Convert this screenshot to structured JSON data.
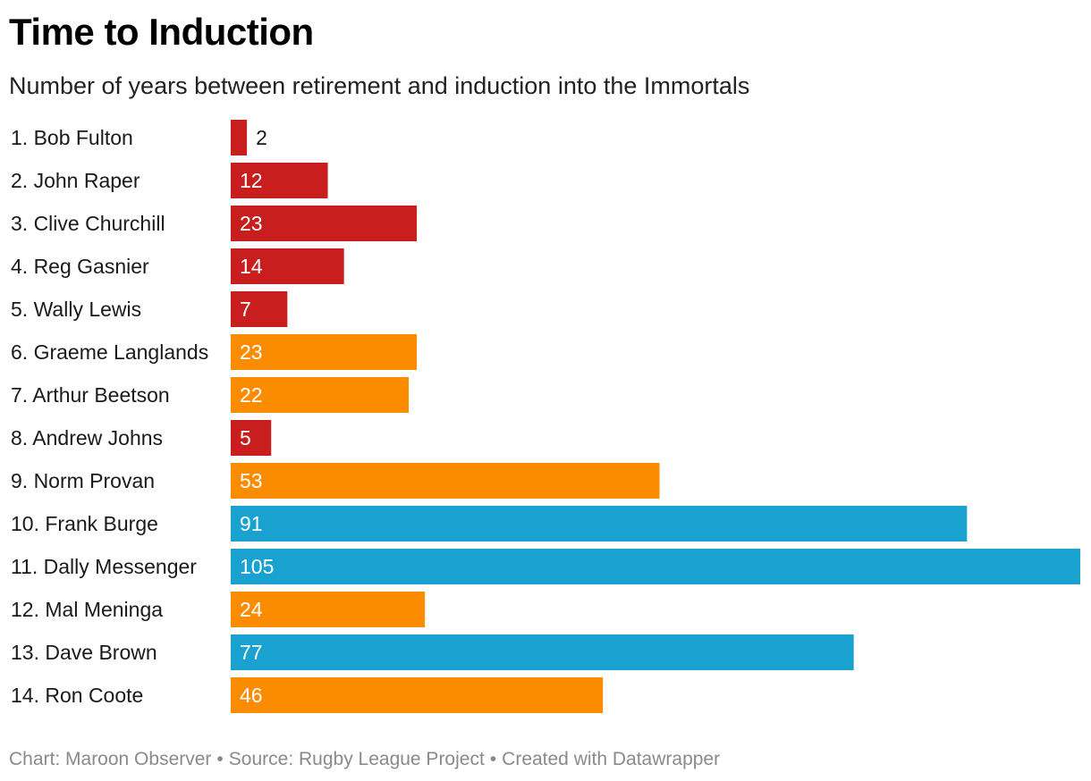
{
  "title": "Time to Induction",
  "subtitle": "Number of years between retirement and induction into the Immortals",
  "footer": {
    "chart_credit": "Chart: Maroon Observer",
    "source": "Source: Rugby League Project",
    "tool": "Created with Datawrapper",
    "separator": "•"
  },
  "colors": {
    "red": "#c81e1e",
    "orange": "#fb8c00",
    "blue": "#19a1cf",
    "label_inside": "#ffffff",
    "label_outside": "#1a1a1a"
  },
  "chart_data": {
    "type": "bar",
    "orientation": "horizontal",
    "title": "Time to Induction",
    "subtitle": "Number of years between retirement and induction into the Immortals",
    "xlabel": "",
    "ylabel": "",
    "xlim": [
      0,
      105
    ],
    "grid": false,
    "legend": "none",
    "categories": [
      "1. Bob Fulton",
      "2. John Raper",
      "3. Clive Churchill",
      "4. Reg Gasnier",
      "5. Wally Lewis",
      "6. Graeme Langlands",
      "7. Arthur Beetson",
      "8. Andrew Johns",
      "9. Norm Provan",
      "10. Frank Burge",
      "11. Dally Messenger",
      "12. Mal Meninga",
      "13. Dave Brown",
      "14. Ron Coote"
    ],
    "values": [
      2,
      12,
      23,
      14,
      7,
      23,
      22,
      5,
      53,
      91,
      105,
      24,
      77,
      46
    ],
    "bar_colors": [
      "red",
      "red",
      "red",
      "red",
      "red",
      "orange",
      "orange",
      "red",
      "orange",
      "blue",
      "blue",
      "orange",
      "blue",
      "orange"
    ]
  }
}
